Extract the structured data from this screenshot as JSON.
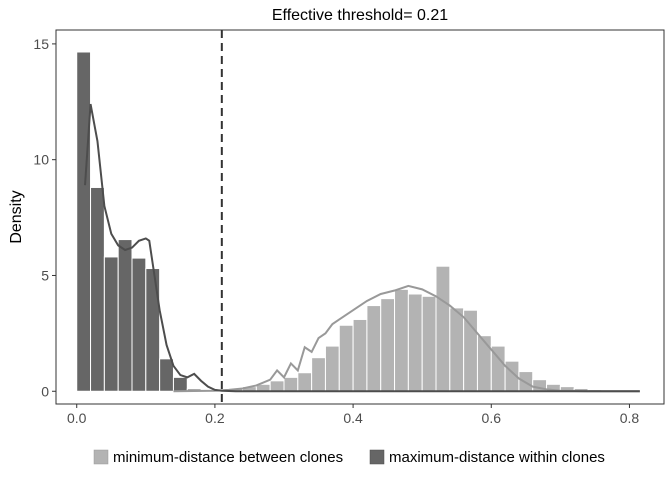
{
  "chart_data": {
    "type": "bar",
    "title": "Effective threshold= 0.21",
    "xlabel": "",
    "ylabel": "Density",
    "xlim": [
      -0.03,
      0.85
    ],
    "ylim": [
      -0.55,
      15.6
    ],
    "x_ticks": [
      {
        "value": 0.0,
        "label": "0.0"
      },
      {
        "value": 0.2,
        "label": "0.2"
      },
      {
        "value": 0.4,
        "label": "0.4"
      },
      {
        "value": 0.6,
        "label": "0.6"
      },
      {
        "value": 0.8,
        "label": "0.8"
      }
    ],
    "y_ticks": [
      {
        "value": 0,
        "label": "0"
      },
      {
        "value": 5,
        "label": "5"
      },
      {
        "value": 10,
        "label": "10"
      },
      {
        "value": 15,
        "label": "15"
      }
    ],
    "grid": false,
    "threshold": 0.21,
    "legend_position": "bottom",
    "series": [
      {
        "name": "minimum-distance between clones",
        "color": "#b3b3b3",
        "curve_color": "#999999",
        "bin_width": 0.02,
        "bin_start": 0.01,
        "values": [
          0,
          0,
          0,
          0,
          0,
          0,
          0,
          0,
          0,
          0,
          0.04,
          0.1,
          0.2,
          0.3,
          0.45,
          0.6,
          0.8,
          1.45,
          1.95,
          2.85,
          3.1,
          3.7,
          4.0,
          4.4,
          4.2,
          4.1,
          5.4,
          3.6,
          3.5,
          2.4,
          1.95,
          1.3,
          0.85,
          0.5,
          0.3,
          0.2,
          0.12,
          0.07,
          0.04,
          0.02,
          0.01,
          0,
          0,
          0,
          0,
          0,
          0,
          0,
          0,
          0,
          0,
          0,
          0,
          0,
          0,
          0,
          0,
          0,
          0,
          0
        ],
        "curve": [
          [
            0.14,
            0
          ],
          [
            0.2,
            0.02
          ],
          [
            0.22,
            0.06
          ],
          [
            0.24,
            0.12
          ],
          [
            0.26,
            0.25
          ],
          [
            0.28,
            0.5
          ],
          [
            0.29,
            0.9
          ],
          [
            0.3,
            0.6
          ],
          [
            0.31,
            1.2
          ],
          [
            0.32,
            0.9
          ],
          [
            0.33,
            1.9
          ],
          [
            0.34,
            1.7
          ],
          [
            0.35,
            2.3
          ],
          [
            0.36,
            2.5
          ],
          [
            0.37,
            2.9
          ],
          [
            0.38,
            3.1
          ],
          [
            0.4,
            3.5
          ],
          [
            0.42,
            3.9
          ],
          [
            0.44,
            4.2
          ],
          [
            0.46,
            4.35
          ],
          [
            0.48,
            4.55
          ],
          [
            0.5,
            4.4
          ],
          [
            0.52,
            4.1
          ],
          [
            0.54,
            3.7
          ],
          [
            0.56,
            3.2
          ],
          [
            0.58,
            2.5
          ],
          [
            0.6,
            1.8
          ],
          [
            0.62,
            1.1
          ],
          [
            0.64,
            0.55
          ],
          [
            0.66,
            0.2
          ],
          [
            0.68,
            0.08
          ],
          [
            0.7,
            0.02
          ],
          [
            0.74,
            0.0
          ],
          [
            0.815,
            0.0
          ]
        ]
      },
      {
        "name": "maximum-distance within clones",
        "color": "#666666",
        "curve_color": "#4d4d4d",
        "bin_width": 0.02,
        "bin_start": 0.01,
        "values": [
          14.65,
          8.8,
          5.8,
          6.55,
          5.75,
          5.3,
          1.4,
          0.6,
          0.1,
          0.02
        ],
        "curve": [
          [
            0.012,
            8.9
          ],
          [
            0.02,
            12.4
          ],
          [
            0.03,
            10.8
          ],
          [
            0.04,
            8.0
          ],
          [
            0.05,
            6.8
          ],
          [
            0.06,
            6.3
          ],
          [
            0.07,
            6.1
          ],
          [
            0.08,
            6.2
          ],
          [
            0.09,
            6.5
          ],
          [
            0.1,
            6.6
          ],
          [
            0.105,
            6.5
          ],
          [
            0.11,
            5.5
          ],
          [
            0.12,
            3.5
          ],
          [
            0.13,
            2.0
          ],
          [
            0.14,
            1.1
          ],
          [
            0.15,
            0.7
          ],
          [
            0.16,
            0.6
          ],
          [
            0.17,
            0.75
          ],
          [
            0.18,
            0.45
          ],
          [
            0.19,
            0.2
          ],
          [
            0.2,
            0.06
          ],
          [
            0.21,
            0.02
          ],
          [
            0.23,
            0.0
          ],
          [
            0.815,
            0.0
          ]
        ]
      }
    ]
  }
}
